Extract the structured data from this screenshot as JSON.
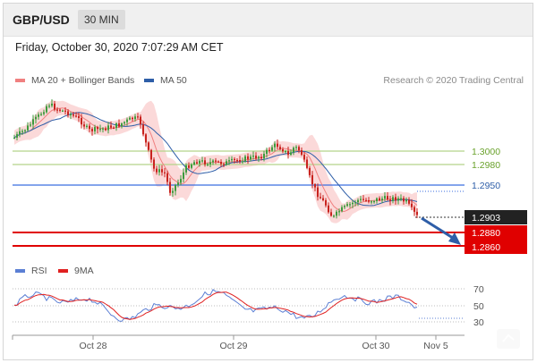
{
  "header": {
    "pair": "GBP/USD",
    "timeframe": "30 MIN"
  },
  "datetime": "Friday, October 30, 2020 7:07:29 AM CET",
  "legend": {
    "ma20": {
      "label": "MA 20 + Bollinger Bands",
      "color": "#f08080"
    },
    "ma50": {
      "label": "MA 50",
      "color": "#2e5ea8"
    }
  },
  "credit": "Research © 2020 Trading Central",
  "levels": [
    {
      "value": 1.3,
      "label": "1.3000",
      "style": "green-line"
    },
    {
      "value": 1.298,
      "label": "1.2980",
      "style": "green-line"
    },
    {
      "value": 1.295,
      "label": "1.2950",
      "style": "blue-line"
    },
    {
      "value": 1.2903,
      "label": "1.2903",
      "style": "current-price"
    },
    {
      "value": 1.288,
      "label": "1.2880",
      "style": "red-line"
    },
    {
      "value": 1.286,
      "label": "1.2860",
      "style": "red-line"
    }
  ],
  "rsi_legend": {
    "rsi": {
      "label": "RSI",
      "color": "#5b7fd4"
    },
    "ma9": {
      "label": "9MA",
      "color": "#e02020"
    }
  },
  "rsi_levels": [
    "70",
    "50",
    "30"
  ],
  "x_axis": [
    "Oct 28",
    "Oct 29",
    "Oct 30",
    "Nov 5"
  ],
  "colors": {
    "up": "#3c9b3c",
    "down": "#c8231e",
    "band_fill": "#fbd9d9",
    "arrow": "#2e5ea8"
  }
}
